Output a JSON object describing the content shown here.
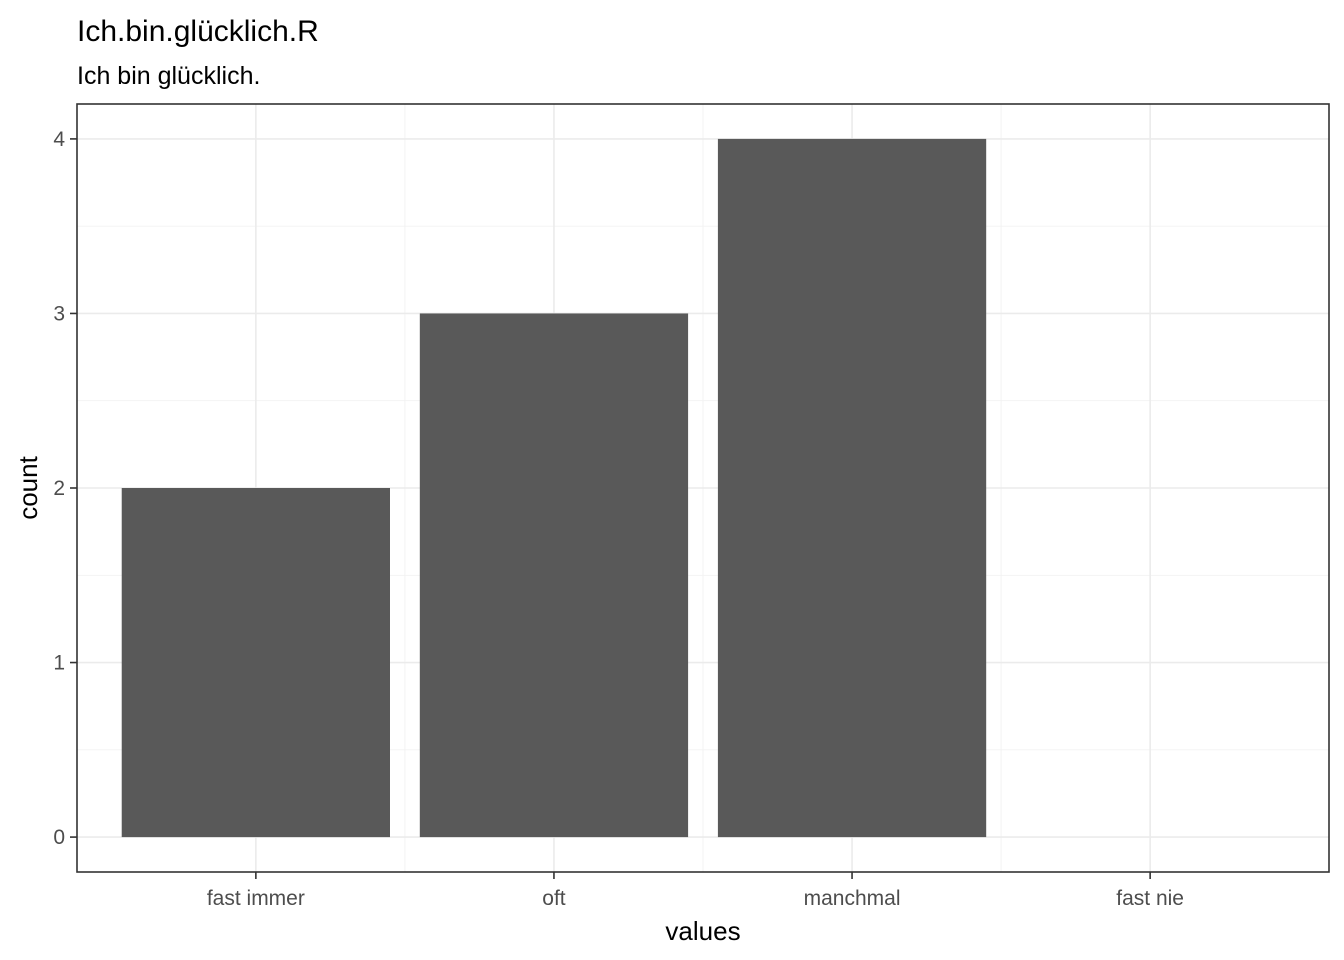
{
  "chart_data": {
    "type": "bar",
    "title": "Ich.bin.glücklich.R",
    "subtitle": "Ich bin glücklich.",
    "xlabel": "values",
    "ylabel": "count",
    "categories": [
      "fast immer",
      "oft",
      "manchmal",
      "fast nie"
    ],
    "values": [
      2,
      3,
      4,
      0
    ],
    "y_ticks": [
      0,
      1,
      2,
      3,
      4
    ],
    "ylim": [
      -0.2,
      4.2
    ],
    "bar_color": "#595959",
    "grid": true
  }
}
